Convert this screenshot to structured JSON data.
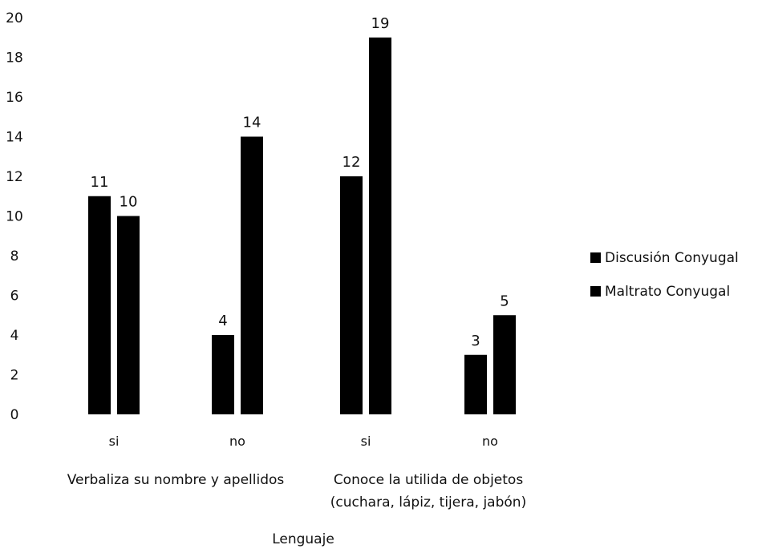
{
  "chart_data": {
    "type": "bar",
    "categories": [
      "si",
      "no",
      "si",
      "no"
    ],
    "groups": [
      {
        "label_lines": [
          "Verbaliza su nombre y apellidos"
        ],
        "categories": [
          "si",
          "no"
        ]
      },
      {
        "label_lines": [
          "Conoce la utilida de objetos",
          "(cuchara, lápiz, tijera, jabón)"
        ],
        "categories": [
          "si",
          "no"
        ]
      }
    ],
    "series": [
      {
        "name": "Discusión Conyugal",
        "values": [
          11,
          4,
          12,
          3
        ],
        "color": "#000000"
      },
      {
        "name": "Maltrato Conyugal",
        "values": [
          10,
          14,
          19,
          5
        ],
        "color": "#000000"
      }
    ],
    "title": "",
    "xlabel": "Lenguaje",
    "ylabel": "",
    "ylim": [
      0,
      20
    ],
    "yticks": [
      0,
      2,
      4,
      6,
      8,
      10,
      12,
      14,
      16,
      18,
      20
    ],
    "grid": false,
    "legend": "right"
  }
}
